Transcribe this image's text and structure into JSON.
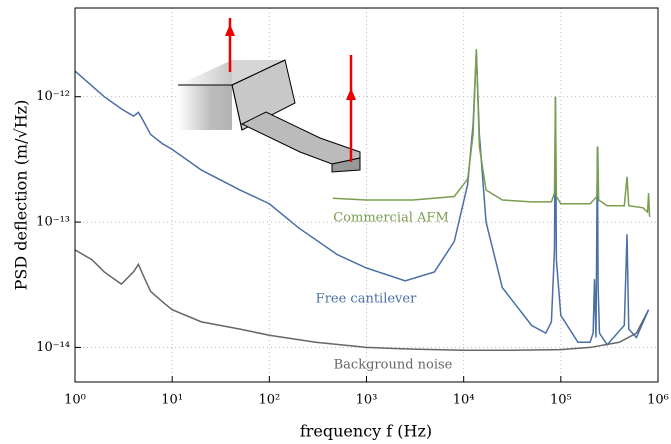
{
  "chart_data": {
    "type": "line",
    "xlabel": "frequency f (Hz)",
    "ylabel": "PSD deflection (m/√Hz)",
    "xscale": "log",
    "yscale": "log",
    "grid": true,
    "xlim": [
      1,
      1000000
    ],
    "ylim": [
      5.3e-15,
      5.1e-12
    ],
    "xticks": [
      {
        "value": 1,
        "label": "10⁰"
      },
      {
        "value": 10,
        "label": "10¹"
      },
      {
        "value": 100,
        "label": "10²"
      },
      {
        "value": 1000,
        "label": "10³"
      },
      {
        "value": 10000,
        "label": "10⁴"
      },
      {
        "value": 100000,
        "label": "10⁵"
      },
      {
        "value": 1000000,
        "label": "10⁶"
      }
    ],
    "yticks": [
      {
        "value": 1e-14,
        "label": "10⁻¹⁴"
      },
      {
        "value": 1e-13,
        "label": "10⁻¹³"
      },
      {
        "value": 1e-12,
        "label": "10⁻¹²"
      }
    ],
    "annotations": [
      "Commercial AFM",
      "Free cantilever",
      "Background noise"
    ],
    "series": [
      {
        "color": "#666666",
        "x": [
          1,
          1.5,
          2,
          3,
          4,
          4.5,
          5,
          6,
          8,
          10,
          20,
          50,
          100,
          300,
          1000,
          3000,
          10000,
          30000,
          100000,
          200000,
          400000,
          600000,
          800000
        ],
        "values": [
          6e-14,
          5e-14,
          4e-14,
          3.2e-14,
          4e-14,
          4.6e-14,
          3.8e-14,
          2.8e-14,
          2.3e-14,
          2e-14,
          1.6e-14,
          1.4e-14,
          1.25e-14,
          1.1e-14,
          1e-14,
          9.7e-15,
          9.5e-15,
          9.5e-15,
          9.6e-15,
          1e-14,
          1.1e-14,
          1.3e-14,
          2e-14
        ]
      },
      {
        "color": "#4a6fa5",
        "x": [
          1,
          2,
          3,
          4,
          4.5,
          5,
          6,
          8,
          10,
          20,
          50,
          100,
          200,
          500,
          1000,
          2500,
          5000,
          8000,
          11000,
          12500,
          13500,
          14500,
          17000,
          25000,
          50000,
          70000,
          80000,
          86000,
          88000,
          90000,
          100000,
          150000,
          200000,
          215000,
          222000,
          230000,
          238000,
          242000,
          250000,
          300000,
          450000,
          480000,
          500000,
          600000,
          800000
        ],
        "values": [
          1.6e-12,
          1e-12,
          8e-13,
          7e-13,
          7.5e-13,
          6.5e-13,
          5e-13,
          4.2e-13,
          3.8e-13,
          2.6e-13,
          1.8e-13,
          1.4e-13,
          9e-14,
          5.5e-14,
          4.3e-14,
          3.4e-14,
          4e-14,
          7e-14,
          2e-13,
          6e-13,
          2.3e-12,
          5e-13,
          1e-13,
          3e-14,
          1.5e-14,
          1.3e-14,
          1.6e-14,
          6e-14,
          1e-12,
          5e-14,
          1.8e-14,
          1.1e-14,
          1.1e-14,
          1.3e-14,
          3.5e-14,
          1.2e-14,
          4e-13,
          3e-14,
          1.3e-14,
          1.05e-14,
          1.5e-14,
          8e-14,
          1.4e-14,
          1.2e-14,
          2e-14
        ]
      },
      {
        "color": "#7a9e4f",
        "x": [
          450,
          1000,
          3000,
          8000,
          11000,
          12500,
          13500,
          14500,
          17000,
          25000,
          50000,
          80000,
          86000,
          88000,
          90000,
          100000,
          200000,
          235000,
          240000,
          245000,
          300000,
          450000,
          480000,
          500000,
          700000,
          780000,
          800000,
          820000
        ],
        "values": [
          1.55e-13,
          1.5e-13,
          1.5e-13,
          1.6e-13,
          2.2e-13,
          5e-13,
          2.4e-12,
          4e-13,
          1.8e-13,
          1.5e-13,
          1.45e-13,
          1.45e-13,
          1.7e-13,
          1e-12,
          1.6e-13,
          1.4e-13,
          1.4e-13,
          1.6e-13,
          4e-13,
          1.5e-13,
          1.35e-13,
          1.35e-13,
          2.3e-13,
          1.35e-13,
          1.3e-13,
          1.2e-13,
          1.7e-13,
          1.1e-13
        ]
      }
    ]
  }
}
